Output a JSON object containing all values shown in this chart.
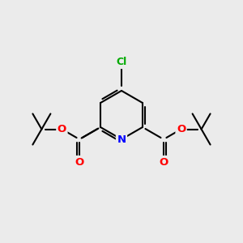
{
  "background_color": "#ebebeb",
  "bond_color": "#000000",
  "bond_width": 1.5,
  "atom_colors": {
    "N": "#0000ff",
    "O": "#ff0000",
    "Cl": "#00aa00",
    "C": "#000000"
  },
  "fig_width": 3.0,
  "fig_height": 3.0
}
